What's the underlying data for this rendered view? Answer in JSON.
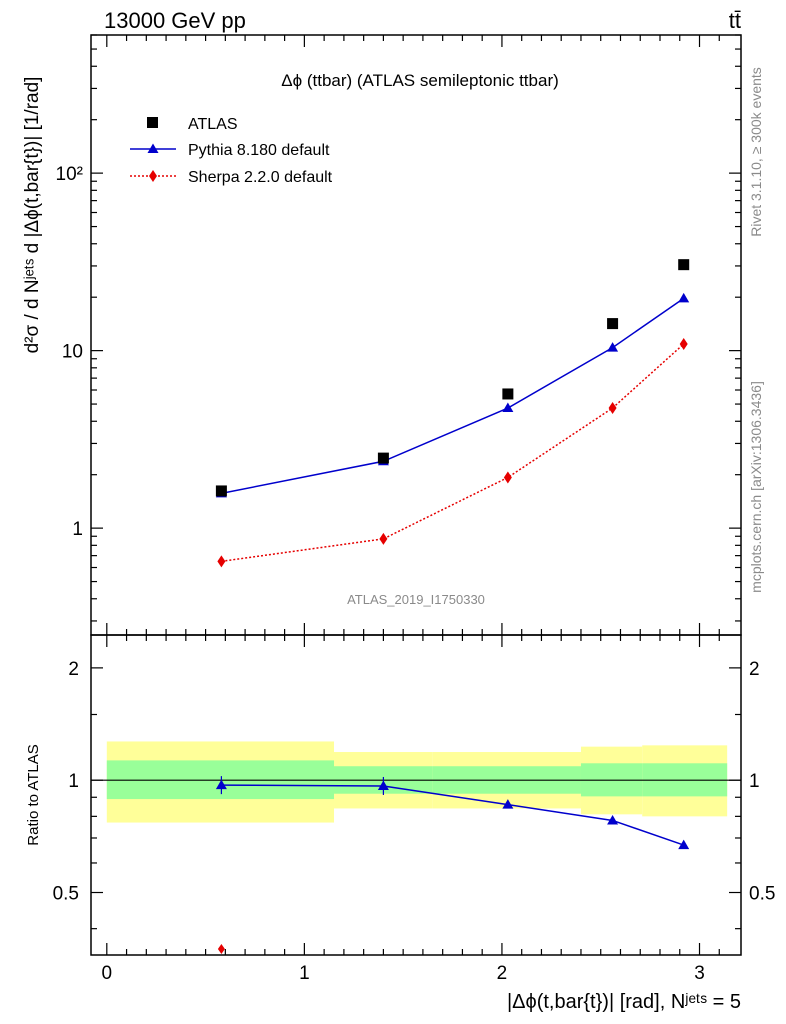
{
  "header": {
    "energy_label": "13000 GeV pp",
    "process_label": "tt̄"
  },
  "side_labels": {
    "rivet": "Rivet 3.1.10, ≥ 300k events",
    "mcplots": "mcplots.cern.ch [arXiv:1306.3436]"
  },
  "watermark": "ATLAS_2019_I1750330",
  "chart_data": [
    {
      "type": "scatter",
      "title": "Δϕ (ttbar) (ATLAS semileptonic ttbar)",
      "ylabel": "d²σ / d Nʲᵉᵗˢ d |Δϕ(t,bar{t})| [1/rad]",
      "yscale": "log",
      "xlim": [
        -0.08,
        3.21
      ],
      "ylim": [
        0.25,
        600
      ],
      "yticks": [
        1,
        10,
        100
      ],
      "ytick_labels": [
        "1",
        "10",
        "10²"
      ],
      "legend_position": "top-left",
      "x": [
        0.58,
        1.4,
        2.03,
        2.56,
        2.92
      ],
      "series": [
        {
          "name": "ATLAS",
          "marker": "square",
          "color": "#000000",
          "values": [
            1.62,
            2.48,
            5.7,
            14.2,
            30.5
          ]
        },
        {
          "name": "Pythia 8.180 default",
          "marker": "triangle",
          "color": "#0000cc",
          "line": "solid",
          "values": [
            1.57,
            2.38,
            4.75,
            10.4,
            19.7
          ]
        },
        {
          "name": "Sherpa 2.2.0 default",
          "marker": "diamond",
          "color": "#e60000",
          "line": "dotted",
          "values": [
            0.65,
            0.87,
            1.93,
            4.75,
            10.9
          ]
        }
      ]
    },
    {
      "type": "line",
      "ylabel": "Ratio to ATLAS",
      "xlabel": "|Δϕ(t,bar{t})| [rad], Nʲᵉᵗˢ = 5",
      "yscale": "log",
      "xlim": [
        -0.08,
        3.21
      ],
      "ylim": [
        0.34,
        2.45
      ],
      "xticks": [
        0,
        1,
        2,
        3
      ],
      "yticks": [
        0.5,
        1,
        2
      ],
      "ytick_labels": [
        "0.5",
        "1",
        "2"
      ],
      "reference_line": 1,
      "bins": [
        {
          "lo": 0.0,
          "hi": 1.15,
          "green": [
            0.89,
            1.13
          ],
          "yellow": [
            0.77,
            1.27
          ]
        },
        {
          "lo": 1.15,
          "hi": 1.65,
          "green": [
            0.92,
            1.09
          ],
          "yellow": [
            0.84,
            1.19
          ]
        },
        {
          "lo": 1.65,
          "hi": 2.4,
          "green": [
            0.92,
            1.09
          ],
          "yellow": [
            0.84,
            1.19
          ]
        },
        {
          "lo": 2.4,
          "hi": 2.71,
          "green": [
            0.905,
            1.11
          ],
          "yellow": [
            0.81,
            1.23
          ]
        },
        {
          "lo": 2.71,
          "hi": 3.14,
          "green": [
            0.905,
            1.11
          ],
          "yellow": [
            0.8,
            1.24
          ]
        }
      ],
      "x": [
        0.58,
        1.4,
        2.03,
        2.56,
        2.92
      ],
      "series": [
        {
          "name": "Pythia 8.180 default",
          "marker": "triangle",
          "color": "#0000cc",
          "values": [
            0.97,
            0.965,
            0.86,
            0.78,
            0.67
          ]
        },
        {
          "name": "Sherpa 2.2.0 default",
          "marker": "diamond",
          "color": "#e60000",
          "values": [
            0.34,
            null,
            null,
            null,
            null
          ]
        }
      ]
    }
  ]
}
